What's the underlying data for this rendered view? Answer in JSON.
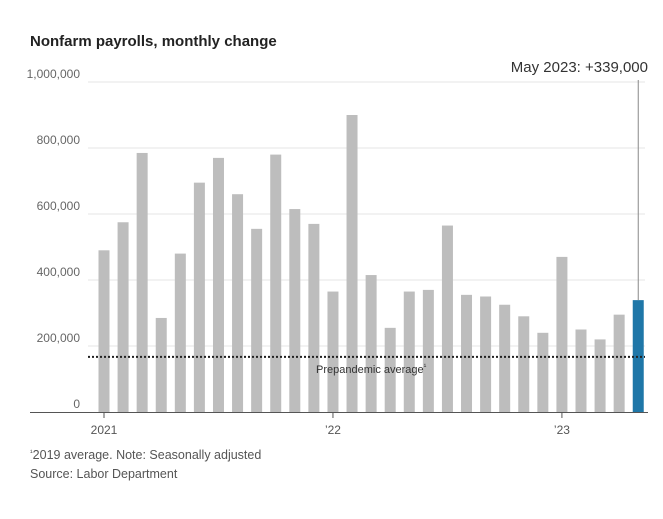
{
  "chart_data": {
    "type": "bar",
    "title": "Nonfarm payrolls, monthly change",
    "xlabel": "",
    "ylabel": "",
    "ylim": [
      0,
      1000000
    ],
    "yticks": [
      {
        "value": 0,
        "label": "0"
      },
      {
        "value": 200000,
        "label": "200,000"
      },
      {
        "value": 400000,
        "label": "400,000"
      },
      {
        "value": 600000,
        "label": "600,000"
      },
      {
        "value": 800000,
        "label": "800,000"
      },
      {
        "value": 1000000,
        "label": "1,000,000"
      }
    ],
    "xticks": [
      {
        "index": 0,
        "label": "2021"
      },
      {
        "index": 12,
        "label": "’22"
      },
      {
        "index": 24,
        "label": "’23"
      }
    ],
    "categories": [
      "Jan 2021",
      "Feb 2021",
      "Mar 2021",
      "Apr 2021",
      "May 2021",
      "Jun 2021",
      "Jul 2021",
      "Aug 2021",
      "Sep 2021",
      "Oct 2021",
      "Nov 2021",
      "Dec 2021",
      "Jan 2022",
      "Feb 2022",
      "Mar 2022",
      "Apr 2022",
      "May 2022",
      "Jun 2022",
      "Jul 2022",
      "Aug 2022",
      "Sep 2022",
      "Oct 2022",
      "Nov 2022",
      "Dec 2022",
      "Jan 2023",
      "Feb 2023",
      "Mar 2023",
      "Apr 2023",
      "May 2023"
    ],
    "values": [
      490000,
      575000,
      785000,
      285000,
      480000,
      695000,
      770000,
      660000,
      555000,
      780000,
      615000,
      570000,
      365000,
      900000,
      415000,
      255000,
      365000,
      370000,
      565000,
      355000,
      350000,
      325000,
      290000,
      240000,
      470000,
      250000,
      220000,
      295000,
      339000
    ],
    "highlight_index": 28,
    "colors": {
      "bar": "#bdbdbd",
      "highlight": "#1f77a8",
      "grid": "#e6e6e6",
      "axis": "#555555",
      "reference": "#222222",
      "callout_line": "#888888"
    },
    "reference_line": {
      "value": 167000,
      "label": "Prepandemic average",
      "marker": "¹"
    },
    "callout": {
      "text": "May 2023: +339,000",
      "index": 28
    },
    "grid": true
  },
  "footer": {
    "note_marker": "¹",
    "note": "2019 average. Note: Seasonally adjusted",
    "source": "Source: Labor Department"
  }
}
